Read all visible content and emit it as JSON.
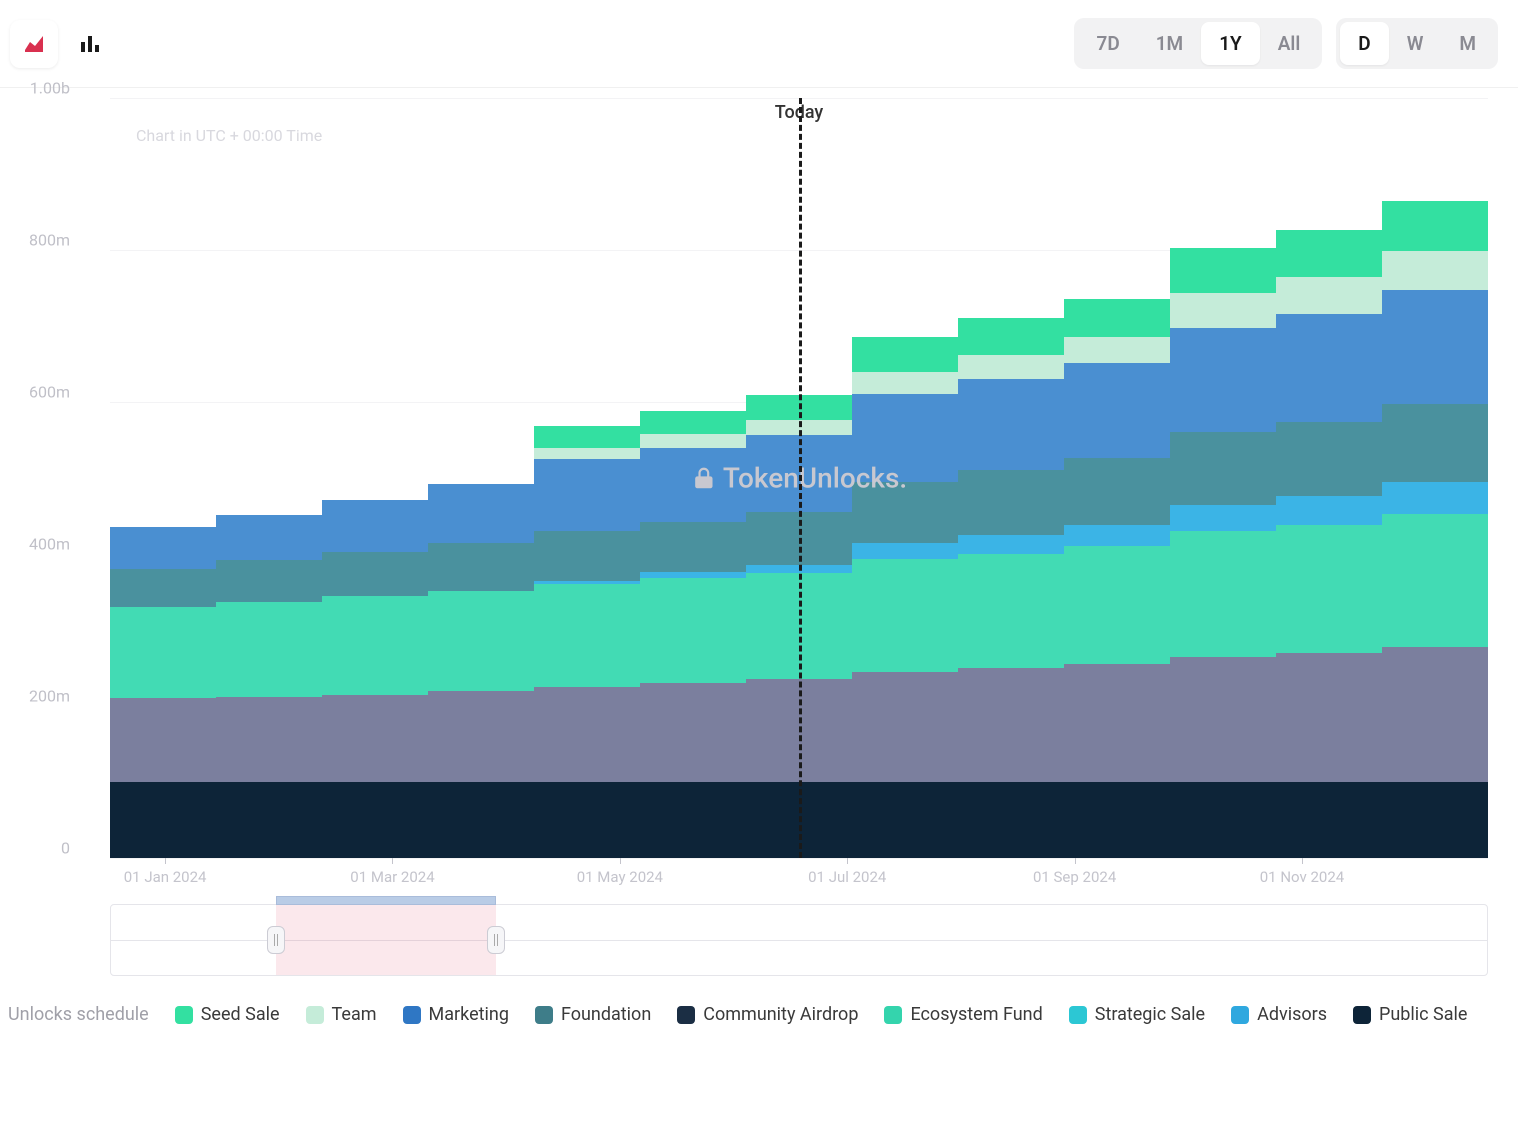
{
  "toolbar": {
    "chart_type_icons": [
      "area-chart-icon",
      "bar-chart-icon"
    ],
    "active_chart_type": 0,
    "range": {
      "options": [
        "7D",
        "1M",
        "1Y",
        "All"
      ],
      "active": "1Y"
    },
    "interval": {
      "options": [
        "D",
        "W",
        "M"
      ],
      "active": "D"
    }
  },
  "chart": {
    "type": "stacked-area-step",
    "annotation": "Chart in UTC + 00:00 Time",
    "watermark": "TokenUnlocks.",
    "today_label": "Today",
    "today_index": 6,
    "y_axis": {
      "min": 0,
      "max": 1000,
      "ticks": [
        0,
        200,
        400,
        600,
        800,
        1000
      ],
      "tick_labels": [
        "0",
        "200m",
        "400m",
        "600m",
        "800m",
        "1.00b"
      ],
      "label_color": "#c0c0c8",
      "grid_color": "#f3f3f5"
    },
    "x_axis": {
      "tick_positions_pct": [
        4,
        20.5,
        37,
        53.5,
        70,
        86.5
      ],
      "tick_labels": [
        "01 Jan 2024",
        "01 Mar 2024",
        "01 May 2024",
        "01 Jul 2024",
        "01 Sep 2024",
        "01 Nov 2024"
      ]
    },
    "series": [
      {
        "name": "Public Sale",
        "color": "#0d2438"
      },
      {
        "name": "Community Airdrop",
        "color": "#5c7491"
      },
      {
        "name": "Strategic Sale",
        "color": "#7b7f9e"
      },
      {
        "name": "Ecosystem Fund",
        "color": "#42dbb4"
      },
      {
        "name": "Advisors",
        "color": "#3bb4e6"
      },
      {
        "name": "Foundation",
        "color": "#4a919e"
      },
      {
        "name": "Marketing",
        "color": "#4a8fd1"
      },
      {
        "name": "Team",
        "color": "#c5ecd9"
      },
      {
        "name": "Seed Sale",
        "color": "#33e0a1"
      }
    ],
    "stacks": [
      [
        100,
        0,
        110,
        120,
        0,
        50,
        55,
        0,
        0
      ],
      [
        100,
        0,
        112,
        125,
        0,
        55,
        60,
        0,
        0
      ],
      [
        100,
        0,
        115,
        130,
        0,
        58,
        68,
        0,
        0
      ],
      [
        100,
        0,
        120,
        132,
        0,
        62,
        78,
        0,
        0
      ],
      [
        100,
        0,
        125,
        135,
        5,
        65,
        95,
        15,
        28
      ],
      [
        100,
        0,
        130,
        138,
        8,
        66,
        98,
        18,
        30
      ],
      [
        100,
        0,
        135,
        140,
        10,
        70,
        102,
        20,
        32
      ],
      [
        100,
        0,
        145,
        148,
        22,
        80,
        115,
        30,
        45
      ],
      [
        100,
        0,
        150,
        150,
        25,
        85,
        120,
        32,
        48
      ],
      [
        100,
        0,
        155,
        155,
        28,
        88,
        125,
        34,
        50
      ],
      [
        100,
        0,
        165,
        165,
        35,
        95,
        138,
        45,
        60
      ],
      [
        100,
        0,
        170,
        168,
        38,
        98,
        142,
        48,
        62
      ],
      [
        100,
        0,
        178,
        175,
        42,
        102,
        150,
        52,
        66
      ]
    ],
    "background_color": "#ffffff"
  },
  "range_slider": {
    "selection_start_pct": 12,
    "selection_end_pct": 28,
    "top_bar_color": "#b9cce6"
  },
  "legend": {
    "title": "Unlocks schedule",
    "items": [
      {
        "label": "Seed Sale",
        "color": "#33e0a1"
      },
      {
        "label": "Team",
        "color": "#c5ecd9"
      },
      {
        "label": "Marketing",
        "color": "#2f77c4"
      },
      {
        "label": "Foundation",
        "color": "#3e7d89"
      },
      {
        "label": "Community Airdrop",
        "color": "#1b2e44"
      },
      {
        "label": "Ecosystem Fund",
        "color": "#34d4ad"
      },
      {
        "label": "Strategic Sale",
        "color": "#2cc7d4"
      },
      {
        "label": "Advisors",
        "color": "#2fa8df"
      },
      {
        "label": "Public Sale",
        "color": "#0d2438"
      }
    ]
  }
}
